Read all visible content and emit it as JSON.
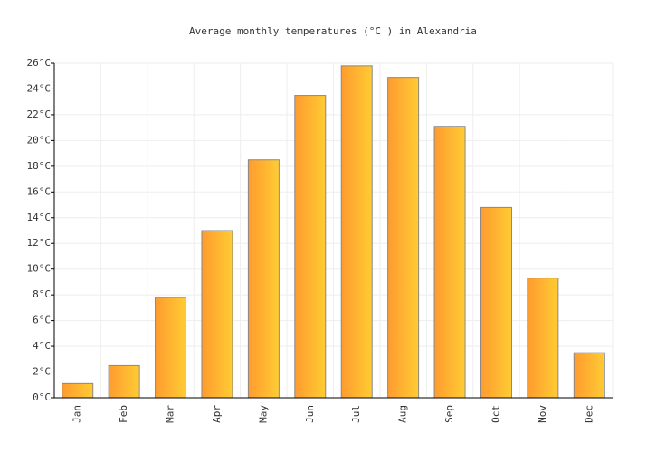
{
  "chart_data": {
    "type": "bar",
    "title": "Average monthly temperatures (°C ) in Alexandria",
    "categories": [
      "Jan",
      "Feb",
      "Mar",
      "Apr",
      "May",
      "Jun",
      "Jul",
      "Aug",
      "Sep",
      "Oct",
      "Nov",
      "Dec"
    ],
    "values": [
      1.1,
      2.5,
      7.8,
      13.0,
      18.5,
      23.5,
      25.8,
      24.9,
      21.1,
      14.8,
      9.3,
      3.5
    ],
    "gradient": [
      "#ff9b2f",
      "#ffcc33"
    ],
    "bar_stroke": "#888888",
    "ylim": [
      0,
      26
    ],
    "yticks": [
      {
        "value": 0,
        "label": "0°C"
      },
      {
        "value": 2,
        "label": "2°C"
      },
      {
        "value": 4,
        "label": "4°C"
      },
      {
        "value": 6,
        "label": "6°C"
      },
      {
        "value": 8,
        "label": "8°C"
      },
      {
        "value": 10,
        "label": "10°C"
      },
      {
        "value": 12,
        "label": "12°C"
      },
      {
        "value": 14,
        "label": "14°C"
      },
      {
        "value": 16,
        "label": "16°C"
      },
      {
        "value": 18,
        "label": "18°C"
      },
      {
        "value": 20,
        "label": "20°C"
      },
      {
        "value": 22,
        "label": "22°C"
      },
      {
        "value": 24,
        "label": "24°C"
      },
      {
        "value": 26,
        "label": "26°C"
      }
    ],
    "grid": true
  }
}
